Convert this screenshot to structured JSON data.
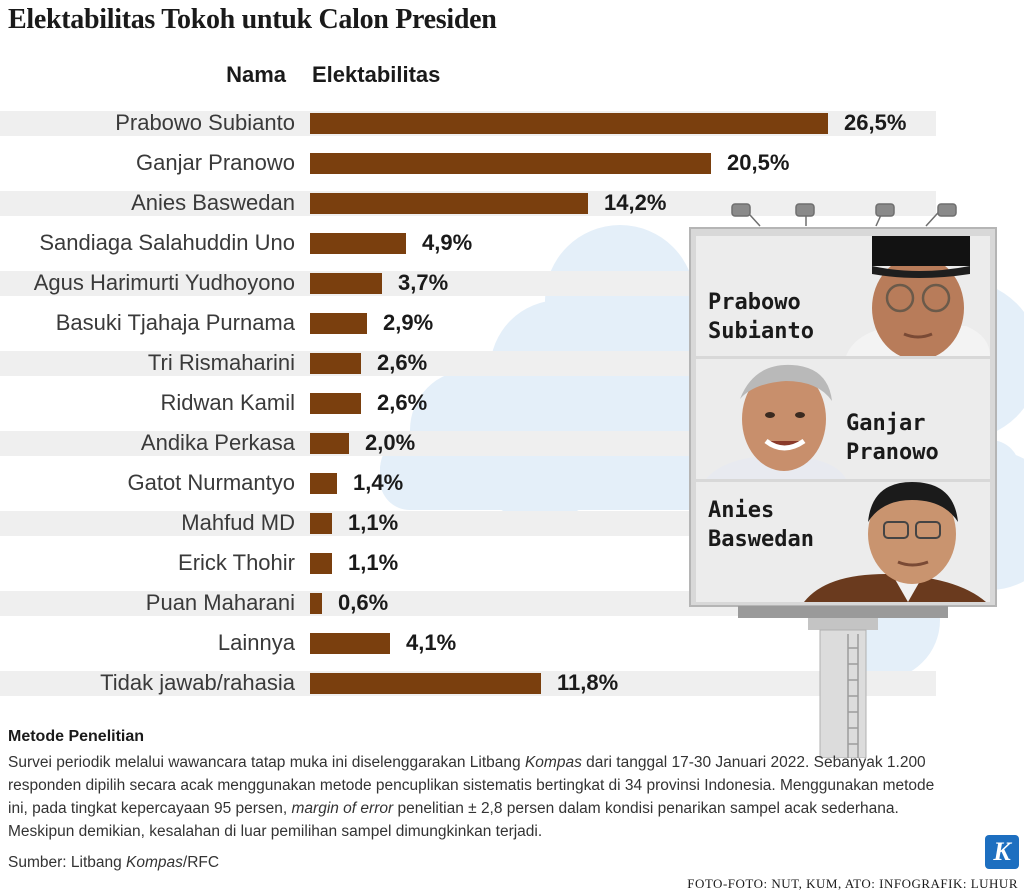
{
  "title": "Elektabilitas Tokoh untuk Calon Presiden",
  "headers": {
    "name": "Nama",
    "value": "Elektabilitas"
  },
  "chart_data": {
    "type": "bar",
    "orientation": "horizontal",
    "title": "Elektabilitas Tokoh untuk Calon Presiden",
    "xlabel": "Elektabilitas",
    "ylabel": "Nama",
    "unit": "%",
    "categories": [
      "Prabowo Subianto",
      "Ganjar Pranowo",
      "Anies Baswedan",
      "Sandiaga Salahuddin Uno",
      "Agus Harimurti Yudhoyono",
      "Basuki Tjahaja Purnama",
      "Tri Rismaharini",
      "Ridwan Kamil",
      "Andika Perkasa",
      "Gatot Nurmantyo",
      "Mahfud MD",
      "Erick Thohir",
      "Puan Maharani",
      "Lainnya",
      "Tidak jawab/rahasia"
    ],
    "values": [
      26.5,
      20.5,
      14.2,
      4.9,
      3.7,
      2.9,
      2.6,
      2.6,
      2.0,
      1.4,
      1.1,
      1.1,
      0.6,
      4.1,
      11.8
    ],
    "value_labels": [
      "26,5%",
      "20,5%",
      "14,2%",
      "4,9%",
      "3,7%",
      "2,9%",
      "2,6%",
      "2,6%",
      "2,0%",
      "1,4%",
      "1,1%",
      "1,1%",
      "0,6%",
      "4,1%",
      "11,8%"
    ],
    "xlim": [
      0,
      26.5
    ],
    "bar_color": "#7a3f0e",
    "grid": false
  },
  "billboard": {
    "panels": [
      {
        "name_line1": "Prabowo",
        "name_line2": "Subianto",
        "photo": "prabowo-photo"
      },
      {
        "name_line1": "Ganjar",
        "name_line2": "Pranowo",
        "photo": "ganjar-photo"
      },
      {
        "name_line1": "Anies",
        "name_line2": "Baswedan",
        "photo": "anies-photo"
      }
    ]
  },
  "method": {
    "heading": "Metode Penelitian",
    "line1_a": "Survei periodik melalui wawancara tatap muka ini diselenggarakan Litbang ",
    "line1_em": "Kompas",
    "line1_b": " dari tanggal 17-30 Januari 2022. Sebanyak 1.200",
    "line2": "responden dipilih secara acak menggunakan metode pencuplikan sistematis bertingkat di 34 provinsi Indonesia. Menggunakan metode",
    "line3_a": "ini, pada tingkat kepercayaan 95 persen, ",
    "line3_em": "margin of error",
    "line3_b": " penelitian ± 2,8 persen dalam kondisi penarikan sampel acak sederhana.",
    "line4": "Meskipun demikian, kesalahan di luar pemilihan sampel dimungkinkan terjadi."
  },
  "source": {
    "prefix": "Sumber: Litbang ",
    "em": "Kompas",
    "suffix": "/RFC"
  },
  "credit": "FOTO-FOTO: NUT, KUM, ATO: INFOGRAFIK: LUHUR",
  "logo_letter": "K",
  "colors": {
    "bar": "#7a3f0e",
    "band": "#efefef",
    "cloud": "#e3eef8",
    "logo": "#1d6fc0"
  }
}
